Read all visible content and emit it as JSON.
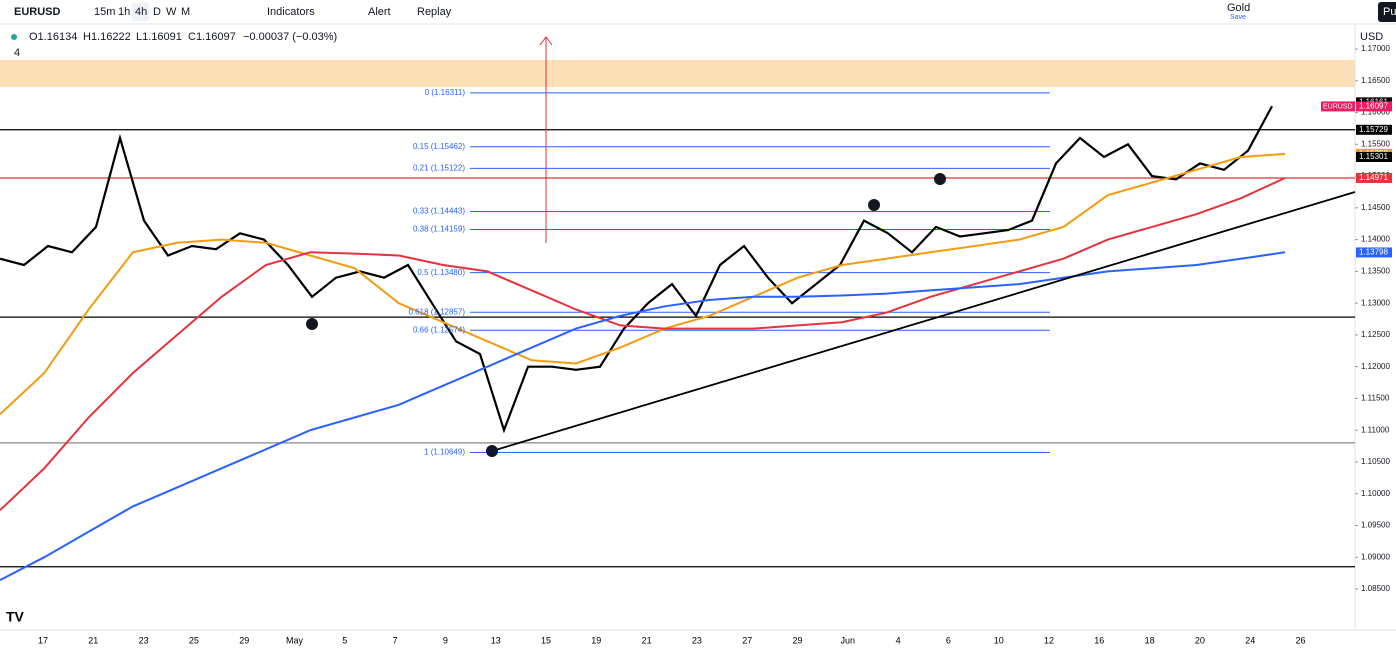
{
  "toolbar": {
    "symbol": "EURUSD",
    "intervals": [
      "15m",
      "1h",
      "4h",
      "D",
      "W",
      "M"
    ],
    "indicators": "Indicators",
    "alert": "Alert",
    "replay": "Replay",
    "gold": "Gold",
    "save": "Save",
    "publish": "Pu"
  },
  "legend": {
    "open": "O1.16134",
    "high": "H1.16222",
    "low": "L1.16091",
    "close": "C1.16097",
    "change": "−0.00037 (−0.03%)",
    "layouts": "4"
  },
  "chart": {
    "type": "line",
    "currency": "USD",
    "ylim": [
      1.0765,
      1.173
    ],
    "yticks": [
      {
        "value": 1.17,
        "label": "1.17000"
      },
      {
        "value": 1.165,
        "label": "1.16500"
      },
      {
        "value": 1.16,
        "label": "1.16000"
      },
      {
        "value": 1.155,
        "label": "1.15500"
      },
      {
        "value": 1.15,
        "label": "1.15000"
      },
      {
        "value": 1.145,
        "label": "1.14500"
      },
      {
        "value": 1.14,
        "label": "1.14000"
      },
      {
        "value": 1.135,
        "label": "1.13500"
      },
      {
        "value": 1.13,
        "label": "1.13000"
      },
      {
        "value": 1.125,
        "label": "1.12500"
      },
      {
        "value": 1.12,
        "label": "1.12000"
      },
      {
        "value": 1.115,
        "label": "1.11500"
      },
      {
        "value": 1.11,
        "label": "1.11000"
      },
      {
        "value": 1.105,
        "label": "1.10500"
      },
      {
        "value": 1.1,
        "label": "1.10000"
      },
      {
        "value": 1.095,
        "label": "1.09500"
      },
      {
        "value": 1.09,
        "label": "1.09000"
      },
      {
        "value": 1.085,
        "label": "1.08500"
      }
    ],
    "x_labels": [
      "17",
      "21",
      "23",
      "25",
      "29",
      "May",
      "5",
      "7",
      "9",
      "13",
      "15",
      "19",
      "21",
      "23",
      "27",
      "29",
      "Jun",
      "4",
      "6",
      "10",
      "12",
      "16",
      "18",
      "20",
      "24",
      "26"
    ],
    "series": [
      {
        "color": "#000000",
        "values": [
          1.137,
          1.136,
          1.139,
          1.138,
          1.142,
          1.156,
          1.143,
          1.1375,
          1.139,
          1.1385,
          1.141,
          1.14,
          1.136,
          1.131,
          1.134,
          1.135,
          1.134,
          1.136,
          1.13,
          1.124,
          1.122,
          1.11,
          1.12,
          1.12,
          1.1195,
          1.12,
          1.126,
          1.13,
          1.133,
          1.128,
          1.136,
          1.139,
          1.134,
          1.13,
          1.133,
          1.136,
          1.143,
          1.141,
          1.138,
          1.142,
          1.1405,
          1.141,
          1.1415,
          1.143,
          1.152,
          1.156,
          1.153,
          1.155,
          1.15,
          1.1495,
          1.152,
          1.151,
          1.154,
          1.161
        ]
      },
      {
        "color": "#f39c12",
        "values": [
          1.1125,
          1.119,
          1.129,
          1.138,
          1.1395,
          1.14,
          1.1395,
          1.1375,
          1.1355,
          1.13,
          1.127,
          1.124,
          1.121,
          1.1205,
          1.123,
          1.126,
          1.128,
          1.131,
          1.134,
          1.136,
          1.137,
          1.138,
          1.139,
          1.14,
          1.142,
          1.147,
          1.149,
          1.151,
          1.153,
          1.1535
        ]
      },
      {
        "color": "#e5323b",
        "values": [
          1.0974,
          1.104,
          1.112,
          1.119,
          1.125,
          1.131,
          1.136,
          1.138,
          1.1378,
          1.1375,
          1.136,
          1.135,
          1.132,
          1.129,
          1.1265,
          1.126,
          1.126,
          1.126,
          1.1265,
          1.127,
          1.1285,
          1.131,
          1.133,
          1.135,
          1.137,
          1.14,
          1.142,
          1.144,
          1.1465,
          1.1497
        ]
      },
      {
        "color": "#2962ff",
        "values": [
          1.0864,
          1.09,
          1.094,
          1.098,
          1.101,
          1.104,
          1.107,
          1.11,
          1.112,
          1.114,
          1.117,
          1.12,
          1.123,
          1.126,
          1.128,
          1.1295,
          1.1305,
          1.131,
          1.131,
          1.1312,
          1.1315,
          1.132,
          1.1325,
          1.133,
          1.134,
          1.135,
          1.1355,
          1.136,
          1.137,
          1.138
        ]
      }
    ],
    "hlines": [
      {
        "value": 1.1573,
        "color": "#000000"
      },
      {
        "value": 1.1278,
        "color": "#000000"
      },
      {
        "value": 1.108,
        "color": "#888888"
      },
      {
        "value": 1.0885,
        "color": "#000000"
      },
      {
        "value": 1.1497,
        "color": "#e5323b"
      }
    ],
    "fib": [
      {
        "value": 1.16311,
        "label": "0 (1.16311)"
      },
      {
        "value": 1.15462,
        "label": "0.15 (1.15462)"
      },
      {
        "value": 1.15122,
        "label": "0.21 (1.15122)"
      },
      {
        "value": 1.14443,
        "label": "0.33 (1.14443)"
      },
      {
        "value": 1.14159,
        "label": "0.38 (1.14159)"
      },
      {
        "value": 1.1348,
        "label": "0.5 (1.13480)"
      },
      {
        "value": 1.12857,
        "label": "0.618 (1.12857)"
      },
      {
        "value": 1.12574,
        "label": "0.66 (1.12574)"
      },
      {
        "value": 1.10649,
        "label": "1 (1.10649)"
      }
    ],
    "price_tags": [
      {
        "value": 1.16161,
        "label": "1.16161",
        "color": "#000000"
      },
      {
        "value": 1.16097,
        "label": "1.16097",
        "name": "EURUSD",
        "color": "#e91e63"
      },
      {
        "value": 1.15729,
        "label": "1.15729",
        "color": "#000000"
      },
      {
        "value": 1.1535,
        "label": "1.15350",
        "color": "#f39c12"
      },
      {
        "value": 1.15301,
        "label": "1.15301",
        "color": "#000000"
      },
      {
        "value": 1.14971,
        "label": "1.14971",
        "color": "#e5323b"
      },
      {
        "value": 1.13798,
        "label": "1.13798",
        "color": "#2962ff"
      }
    ]
  }
}
